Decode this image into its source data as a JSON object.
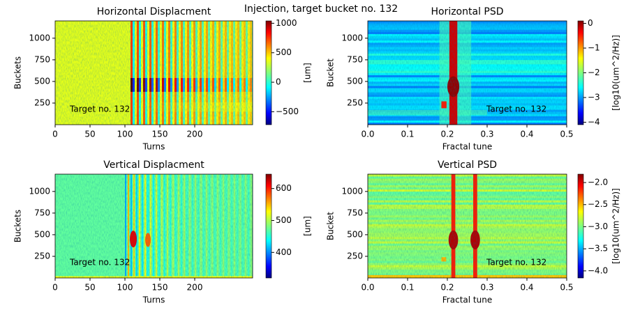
{
  "title": "Injection, target bucket no. 132",
  "chart_data": [
    {
      "type": "heatmap",
      "title": "Horizontal Displacment",
      "xlabel": "Turns",
      "ylabel": "Buckets",
      "xlim": [
        0,
        283
      ],
      "xticks": [
        0,
        50,
        100,
        150,
        200
      ],
      "ylim": [
        0,
        1200
      ],
      "yticks": [
        250,
        500,
        750,
        1000
      ],
      "annotation": "Target no. 132",
      "colorbar": {
        "label": "[um]",
        "lim": [
          -720,
          1040
        ],
        "ticks": [
          {
            "value": -500,
            "label": "−500"
          },
          0,
          500,
          1000
        ]
      }
    },
    {
      "type": "heatmap",
      "title": "Horizontal PSD",
      "xlabel": "Fractal tune",
      "ylabel": "Bucket",
      "xlim": [
        0,
        0.5
      ],
      "xticks": [
        {
          "value": 0,
          "label": "0.0"
        },
        0.1,
        0.2,
        0.3,
        0.4,
        0.5
      ],
      "ylim": [
        0,
        1200
      ],
      "yticks": [
        250,
        500,
        750,
        1000
      ],
      "annotation": "Target no. 132",
      "colorbar": {
        "label": "[log10(um^2/Hz)]",
        "lim": [
          -4.1,
          0.1
        ],
        "ticks": [
          {
            "value": -4,
            "label": "−4"
          },
          {
            "value": -3,
            "label": "−3"
          },
          {
            "value": -2,
            "label": "−2"
          },
          {
            "value": -1,
            "label": "−1"
          },
          0
        ]
      }
    },
    {
      "type": "heatmap",
      "title": "Vertical Displacment",
      "xlabel": "Turns",
      "ylabel": "Buckets",
      "xlim": [
        0,
        283
      ],
      "xticks": [
        0,
        50,
        100,
        150,
        200
      ],
      "ylim": [
        0,
        1200
      ],
      "yticks": [
        250,
        500,
        750,
        1000
      ],
      "annotation": "Target no. 132",
      "colorbar": {
        "label": "[um]",
        "lim": [
          320,
          645
        ],
        "ticks": [
          400,
          500,
          600
        ]
      }
    },
    {
      "type": "heatmap",
      "title": "Vertical PSD",
      "xlabel": "Fractal tune",
      "ylabel": "Bucket",
      "xlim": [
        0,
        0.5
      ],
      "xticks": [
        {
          "value": 0,
          "label": "0.0"
        },
        0.1,
        0.2,
        0.3,
        0.4,
        0.5
      ],
      "ylim": [
        0,
        1200
      ],
      "yticks": [
        250,
        500,
        750,
        1000
      ],
      "annotation": "Target no. 132",
      "colorbar": {
        "label": "[log10(um^2/Hz)]",
        "lim": [
          -4.16,
          -1.81
        ],
        "ticks": [
          {
            "value": -4,
            "label": "−4.0"
          },
          {
            "value": -3.5,
            "label": "−3.5"
          },
          {
            "value": -3,
            "label": "−3.0"
          },
          {
            "value": -2.5,
            "label": "−2.5"
          },
          {
            "value": -2,
            "label": "−2.0"
          }
        ]
      }
    }
  ]
}
